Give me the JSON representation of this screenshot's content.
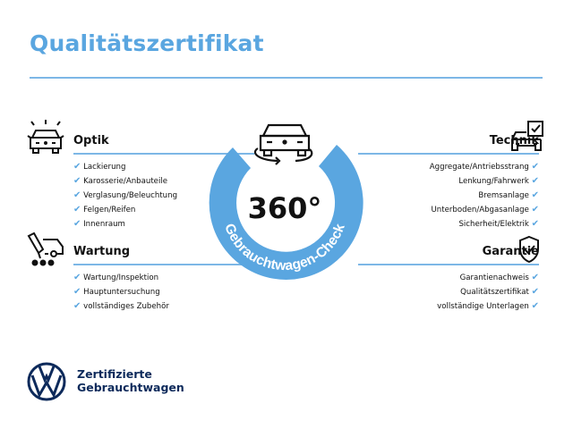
{
  "title": "Qualitätszertifikat",
  "center": {
    "degrees": "360°",
    "ring_text": "Gebrauchtwagen-Check"
  },
  "colors": {
    "accent": "#5aa6e0",
    "brand": "#0d2a5b"
  },
  "sections": {
    "optik": {
      "title": "Optik",
      "icon": "car-lights-icon",
      "items": [
        "Lackierung",
        "Karosserie/Anbauteile",
        "Verglasung/Beleuchtung",
        "Felgen/Reifen",
        "Innenraum"
      ]
    },
    "wartung": {
      "title": "Wartung",
      "icon": "service-car-icon",
      "items": [
        "Wartung/Inspektion",
        "Hauptuntersuchung",
        "vollständiges Zubehör"
      ]
    },
    "technik": {
      "title": "Technik",
      "icon": "car-checklist-icon",
      "items": [
        "Aggregate/Antriebsstrang",
        "Lenkung/Fahrwerk",
        "Bremsanlage",
        "Unterboden/Abgasanlage",
        "Sicherheit/Elektrik"
      ]
    },
    "garantie": {
      "title": "Garantie",
      "icon": "shield-check-icon",
      "items": [
        "Garantienachweis",
        "Qualitätszertifikat",
        "vollständige Unterlagen"
      ]
    }
  },
  "check_mark": "✔",
  "brand": {
    "line1": "Zertifizierte",
    "line2": "Gebrauchtwagen"
  }
}
